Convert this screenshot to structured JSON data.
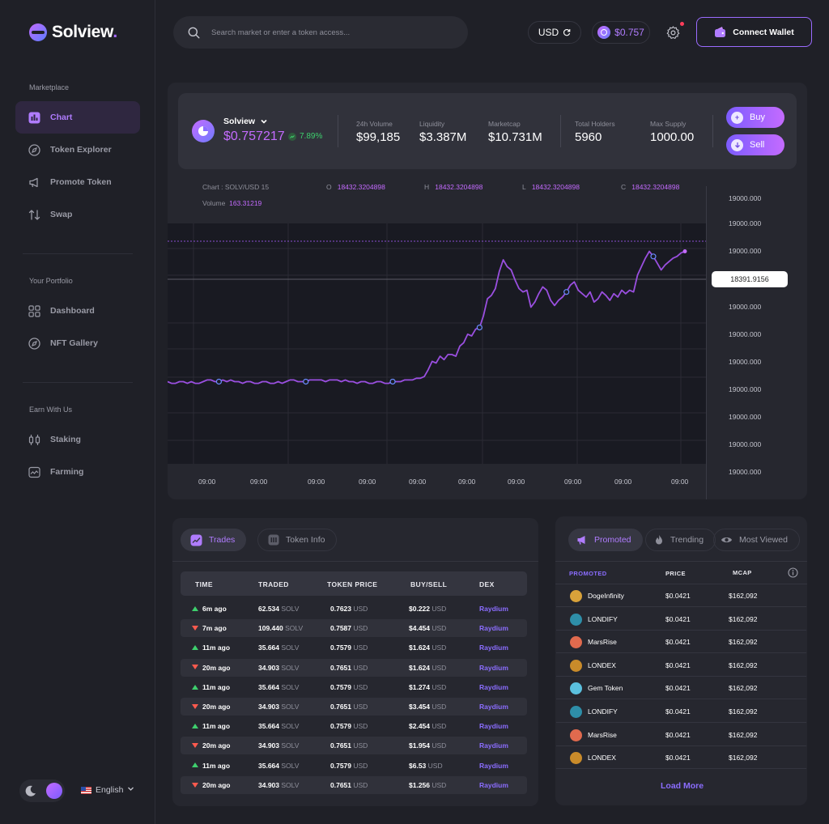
{
  "brand": {
    "name": "Solview",
    "dot": "."
  },
  "sidebar": {
    "sections": [
      {
        "label": "Marketplace"
      },
      {
        "label": "Your Portfolio"
      },
      {
        "label": "Earn With Us"
      }
    ],
    "items": [
      {
        "label": "Chart",
        "icon": "chart-icon",
        "active": true
      },
      {
        "label": "Token Explorer",
        "icon": "compass-icon"
      },
      {
        "label": "Promote Token",
        "icon": "megaphone-icon"
      },
      {
        "label": "Swap",
        "icon": "swap-icon"
      },
      {
        "label": "Dashboard",
        "icon": "dashboard-icon"
      },
      {
        "label": "NFT Gallery",
        "icon": "compass-icon"
      },
      {
        "label": "Staking",
        "icon": "staking-icon"
      },
      {
        "label": "Farming",
        "icon": "farming-icon"
      }
    ],
    "language": "English"
  },
  "topbar": {
    "search_placeholder": "Search market or enter a token access...",
    "currency": "USD",
    "balance": "$0.757",
    "connect_wallet": "Connect Wallet"
  },
  "token": {
    "name": "Solview",
    "price": "$0.757217",
    "change": "7.89%",
    "stats": [
      {
        "label": "24h Volume",
        "value": "$99,185"
      },
      {
        "label": "Liquidity",
        "value": "$3.387M"
      },
      {
        "label": "Marketcap",
        "value": "$10.731M"
      },
      {
        "label": "Total Holders",
        "value": "5960"
      },
      {
        "label": "Max Supply",
        "value": "1000.00"
      }
    ],
    "buy_label": "Buy",
    "sell_label": "Sell"
  },
  "chart_info": {
    "pair_label": "Chart : SOLV/USD 15",
    "o_label": "O",
    "o_value": "18432.3204898",
    "h_label": "H",
    "h_value": "18432.3204898",
    "l_label": "L",
    "l_value": "18432.3204898",
    "c_label": "C",
    "c_value": "18432.3204898",
    "volume_label": "Volume",
    "volume_value": "163.31219"
  },
  "chart_data": {
    "type": "line",
    "x_ticks": [
      "09:00",
      "09:00",
      "09:00",
      "09:00",
      "09:00",
      "09:00",
      "09:00",
      "09:00",
      "09:00",
      "09:00"
    ],
    "y_ticks": [
      "19000.000",
      "19000.000",
      "19000.000",
      "19000.000",
      "19000.000",
      "19000.000",
      "19000.000",
      "19000.000",
      "19000.000",
      "19000.000",
      "19000.000"
    ],
    "current_price_label": "18391.9156",
    "series": [
      {
        "values": [
          0.17,
          0.16,
          0.16,
          0.17,
          0.17,
          0.16,
          0.17,
          0.16,
          0.16,
          0.17,
          0.18,
          0.18,
          0.17,
          0.17,
          0.18,
          0.17,
          0.18,
          0.17,
          0.17,
          0.16,
          0.17,
          0.17,
          0.16,
          0.16,
          0.17,
          0.17,
          0.16,
          0.16,
          0.17,
          0.16,
          0.17,
          0.18,
          0.18,
          0.17,
          0.17,
          0.17,
          0.18,
          0.18,
          0.18,
          0.18,
          0.17,
          0.18,
          0.18,
          0.18,
          0.17,
          0.18,
          0.17,
          0.17,
          0.16,
          0.17,
          0.17,
          0.16,
          0.16,
          0.17,
          0.17,
          0.16,
          0.16,
          0.17,
          0.17,
          0.17,
          0.18,
          0.18,
          0.18,
          0.19,
          0.19,
          0.2,
          0.24,
          0.29,
          0.28,
          0.32,
          0.3,
          0.33,
          0.33,
          0.32,
          0.38,
          0.4,
          0.45,
          0.44,
          0.48,
          0.49,
          0.56,
          0.66,
          0.68,
          0.72,
          0.82,
          0.89,
          0.85,
          0.83,
          0.77,
          0.72,
          0.7,
          0.71,
          0.61,
          0.64,
          0.69,
          0.73,
          0.71,
          0.65,
          0.62,
          0.65,
          0.67,
          0.7,
          0.74,
          0.76,
          0.71,
          0.69,
          0.67,
          0.7,
          0.64,
          0.66,
          0.7,
          0.68,
          0.65,
          0.69,
          0.67,
          0.71,
          0.69,
          0.71,
          0.7,
          0.8,
          0.85,
          0.9,
          0.94,
          0.91,
          0.87,
          0.83,
          0.86,
          0.88,
          0.9,
          0.91,
          0.93,
          0.94
        ]
      }
    ],
    "markers_at": [
      13,
      35,
      57,
      79,
      101,
      123
    ],
    "grid": true
  },
  "trades": {
    "tabs": [
      {
        "label": "Trades",
        "active": true
      },
      {
        "label": "Token Info"
      }
    ],
    "columns": [
      "TIME",
      "TRADED",
      "TOKEN PRICE",
      "BUY/SELL",
      "DEX"
    ],
    "unit_token": "SOLV",
    "unit_usd": "USD",
    "rows": [
      {
        "dir": "up",
        "time": "6m ago",
        "traded": "62.534",
        "price": "0.7623",
        "value": "$0.222",
        "dex": "Raydium"
      },
      {
        "dir": "down",
        "time": "7m ago",
        "traded": "109.440",
        "price": "0.7587",
        "value": "$4.454",
        "dex": "Raydium"
      },
      {
        "dir": "up",
        "time": "11m ago",
        "traded": "35.664",
        "price": "0.7579",
        "value": "$1.624",
        "dex": "Raydium"
      },
      {
        "dir": "down",
        "time": "20m ago",
        "traded": "34.903",
        "price": "0.7651",
        "value": "$1.624",
        "dex": "Raydium"
      },
      {
        "dir": "up",
        "time": "11m ago",
        "traded": "35.664",
        "price": "0.7579",
        "value": "$1.274",
        "dex": "Raydium"
      },
      {
        "dir": "down",
        "time": "20m ago",
        "traded": "34.903",
        "price": "0.7651",
        "value": "$3.454",
        "dex": "Raydium"
      },
      {
        "dir": "up",
        "time": "11m ago",
        "traded": "35.664",
        "price": "0.7579",
        "value": "$2.454",
        "dex": "Raydium"
      },
      {
        "dir": "down",
        "time": "20m ago",
        "traded": "34.903",
        "price": "0.7651",
        "value": "$1.954",
        "dex": "Raydium"
      },
      {
        "dir": "up",
        "time": "11m ago",
        "traded": "35.664",
        "price": "0.7579",
        "value": "$6.53",
        "dex": "Raydium"
      },
      {
        "dir": "down",
        "time": "20m ago",
        "traded": "34.903",
        "price": "0.7651",
        "value": "$1.256",
        "dex": "Raydium"
      }
    ]
  },
  "promoted": {
    "tabs": [
      {
        "label": "Promoted",
        "active": true
      },
      {
        "label": "Trending"
      },
      {
        "label": "Most Viewed"
      }
    ],
    "columns": [
      "PROMOTED",
      "PRICE",
      "MCAP"
    ],
    "rows": [
      {
        "name": "DogeInfinity",
        "price": "$0.0421",
        "mcap": "$162,092",
        "color": "#d9a23a"
      },
      {
        "name": "LONDIFY",
        "price": "$0.0421",
        "mcap": "$162,092",
        "color": "#2e8ea8"
      },
      {
        "name": "MarsRise",
        "price": "$0.0421",
        "mcap": "$162,092",
        "color": "#e06a4e"
      },
      {
        "name": "LONDEX",
        "price": "$0.0421",
        "mcap": "$162,092",
        "color": "#c98b2a"
      },
      {
        "name": "Gem Token",
        "price": "$0.0421",
        "mcap": "$162,092",
        "color": "#5bc0de"
      },
      {
        "name": "LONDIFY",
        "price": "$0.0421",
        "mcap": "$162,092",
        "color": "#2e8ea8"
      },
      {
        "name": "MarsRise",
        "price": "$0.0421",
        "mcap": "$162,092",
        "color": "#e06a4e"
      },
      {
        "name": "LONDEX",
        "price": "$0.0421",
        "mcap": "$162,092",
        "color": "#c98b2a"
      }
    ],
    "load_more": "Load More"
  },
  "colors": {
    "accent": "#b07cff",
    "up": "#3ecf6d",
    "down": "#ff5a4e",
    "dex": "#8b6dff"
  }
}
